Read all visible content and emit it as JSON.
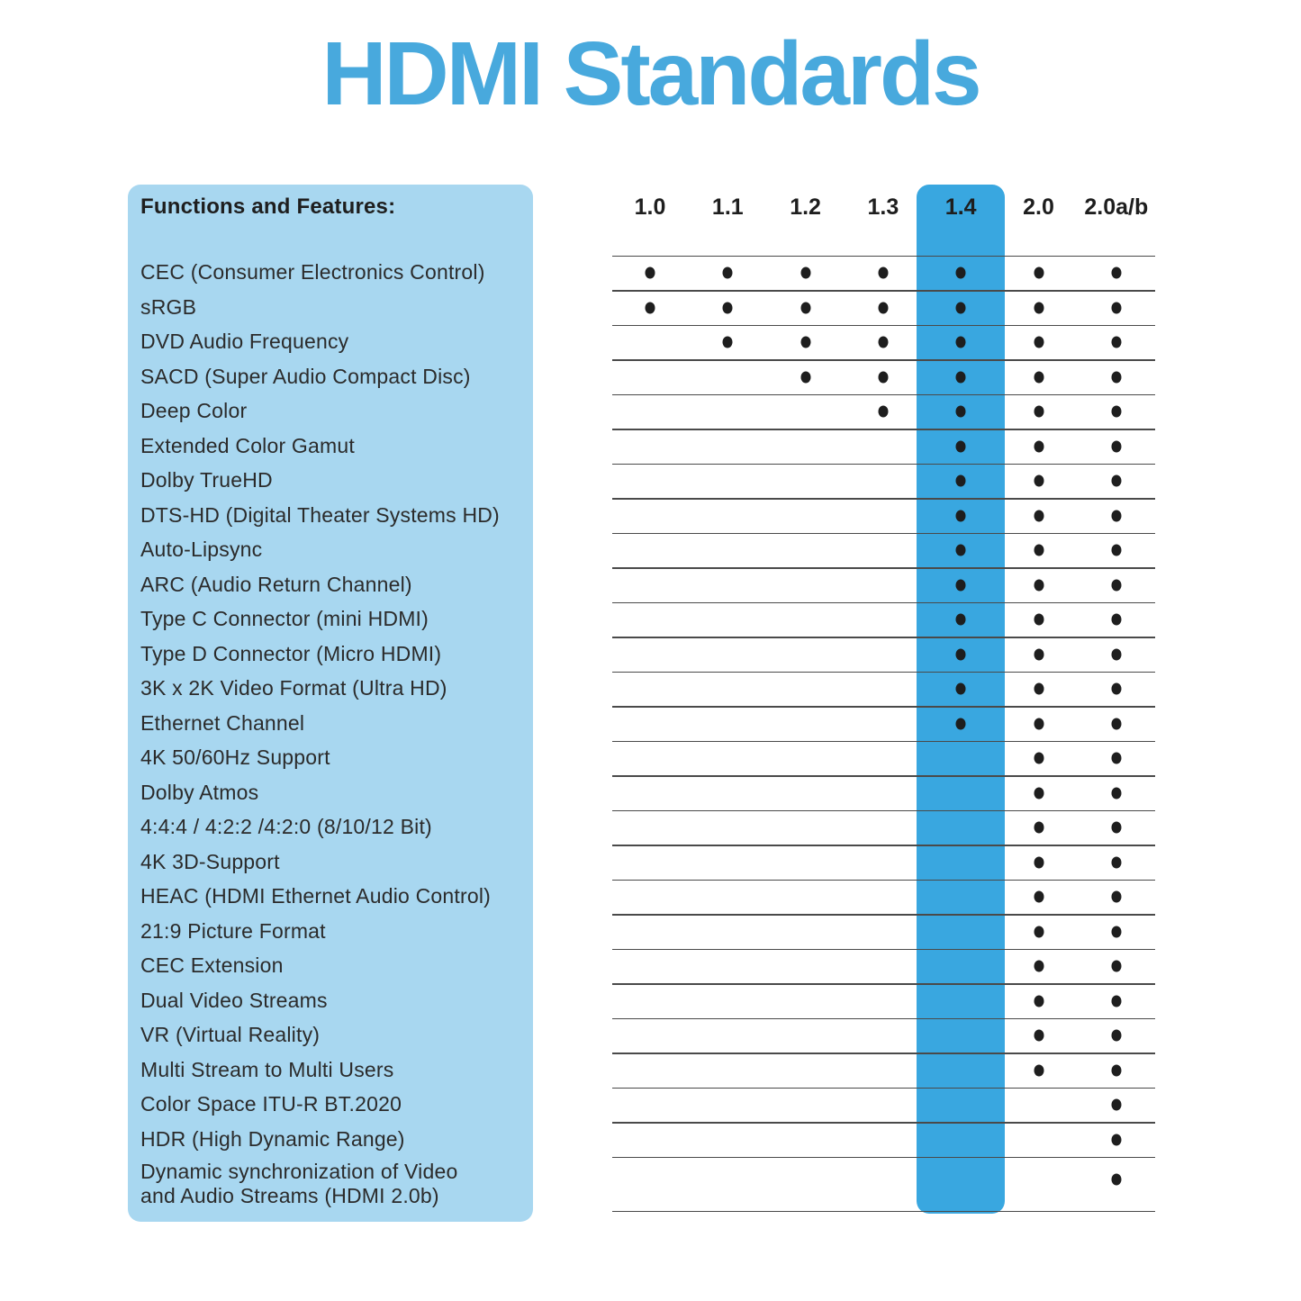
{
  "title": "HDMI Standards",
  "colors": {
    "title_blue": "#48A9DD",
    "band_blue": "#39A7E0",
    "panel_blue": "#A8D7F0",
    "dot_black": "#1e1e1e",
    "line_gray": "#4a4a4a"
  },
  "chart_data": {
    "type": "table",
    "title": "HDMI Standards",
    "row_header_label": "Functions and Features:",
    "columns": [
      "1.0",
      "1.1",
      "1.2",
      "1.3",
      "1.4",
      "2.0",
      "2.0a/b"
    ],
    "highlighted_column": "1.4",
    "legend": "dot = feature supported in that HDMI version",
    "rows": [
      {
        "feature": "CEC (Consumer Electronics Control)",
        "support": [
          1,
          1,
          1,
          1,
          1,
          1,
          1
        ]
      },
      {
        "feature": "sRGB",
        "support": [
          1,
          1,
          1,
          1,
          1,
          1,
          1
        ]
      },
      {
        "feature": "DVD Audio Frequency",
        "support": [
          0,
          1,
          1,
          1,
          1,
          1,
          1
        ]
      },
      {
        "feature": "SACD (Super Audio Compact Disc)",
        "support": [
          0,
          0,
          1,
          1,
          1,
          1,
          1
        ]
      },
      {
        "feature": "Deep Color",
        "support": [
          0,
          0,
          0,
          1,
          1,
          1,
          1
        ]
      },
      {
        "feature": "Extended Color Gamut",
        "support": [
          0,
          0,
          0,
          0,
          1,
          1,
          1
        ]
      },
      {
        "feature": "Dolby TrueHD",
        "support": [
          0,
          0,
          0,
          0,
          1,
          1,
          1
        ]
      },
      {
        "feature": "DTS-HD (Digital Theater Systems HD)",
        "support": [
          0,
          0,
          0,
          0,
          1,
          1,
          1
        ]
      },
      {
        "feature": "Auto-Lipsync",
        "support": [
          0,
          0,
          0,
          0,
          1,
          1,
          1
        ]
      },
      {
        "feature": "ARC (Audio Return Channel)",
        "support": [
          0,
          0,
          0,
          0,
          1,
          1,
          1
        ]
      },
      {
        "feature": "Type C Connector (mini HDMI)",
        "support": [
          0,
          0,
          0,
          0,
          1,
          1,
          1
        ]
      },
      {
        "feature": "Type D Connector (Micro HDMI)",
        "support": [
          0,
          0,
          0,
          0,
          1,
          1,
          1
        ]
      },
      {
        "feature": "3K x 2K Video Format (Ultra HD)",
        "support": [
          0,
          0,
          0,
          0,
          1,
          1,
          1
        ]
      },
      {
        "feature": "Ethernet Channel",
        "support": [
          0,
          0,
          0,
          0,
          1,
          1,
          1
        ]
      },
      {
        "feature": "4K 50/60Hz Support",
        "support": [
          0,
          0,
          0,
          0,
          0,
          1,
          1
        ]
      },
      {
        "feature": "Dolby Atmos",
        "support": [
          0,
          0,
          0,
          0,
          0,
          1,
          1
        ]
      },
      {
        "feature": "4:4:4 / 4:2:2 /4:2:0 (8/10/12 Bit)",
        "support": [
          0,
          0,
          0,
          0,
          0,
          1,
          1
        ]
      },
      {
        "feature": "4K 3D-Support",
        "support": [
          0,
          0,
          0,
          0,
          0,
          1,
          1
        ]
      },
      {
        "feature": "HEAC (HDMI Ethernet Audio Control)",
        "support": [
          0,
          0,
          0,
          0,
          0,
          1,
          1
        ]
      },
      {
        "feature": "21:9 Picture Format",
        "support": [
          0,
          0,
          0,
          0,
          0,
          1,
          1
        ]
      },
      {
        "feature": "CEC Extension",
        "support": [
          0,
          0,
          0,
          0,
          0,
          1,
          1
        ]
      },
      {
        "feature": "Dual Video Streams",
        "support": [
          0,
          0,
          0,
          0,
          0,
          1,
          1
        ]
      },
      {
        "feature": "VR (Virtual Reality)",
        "support": [
          0,
          0,
          0,
          0,
          0,
          1,
          1
        ]
      },
      {
        "feature": "Multi Stream to Multi Users",
        "support": [
          0,
          0,
          0,
          0,
          0,
          1,
          1
        ]
      },
      {
        "feature": "Color Space ITU-R BT.2020",
        "support": [
          0,
          0,
          0,
          0,
          0,
          0,
          1
        ]
      },
      {
        "feature": "HDR (High Dynamic Range)",
        "support": [
          0,
          0,
          0,
          0,
          0,
          0,
          1
        ]
      },
      {
        "feature": "Dynamic synchronization of Video\nand Audio Streams (HDMI 2.0b)",
        "support": [
          0,
          0,
          0,
          0,
          0,
          0,
          1
        ]
      }
    ]
  }
}
